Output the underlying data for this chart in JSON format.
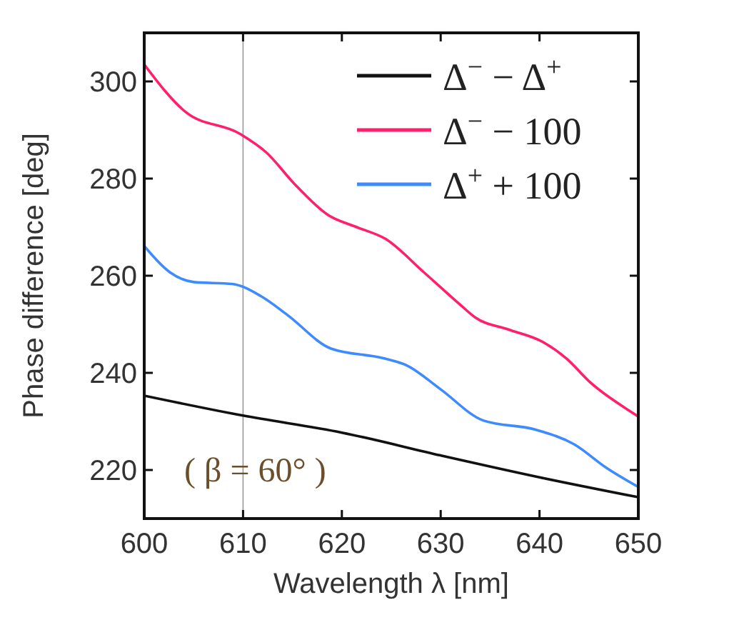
{
  "chart_data": {
    "type": "line",
    "xlabel": "Wavelength λ [nm]",
    "ylabel": "Phase difference [deg]",
    "xlim": [
      600,
      650
    ],
    "ylim": [
      210,
      310
    ],
    "xticks": [
      600,
      610,
      620,
      630,
      640,
      650
    ],
    "yticks": [
      220,
      240,
      260,
      280,
      300
    ],
    "grid": false,
    "legend": "top right",
    "line_style": "solid",
    "marker": "none",
    "series": [
      {
        "name": "Δ$^{−}$ − Δ$^{+}$",
        "color": "#111111",
        "x": [
          600,
          610,
          620,
          630,
          640,
          650
        ],
        "values": [
          235.3,
          231.2,
          227.7,
          223,
          218.5,
          214.4
        ]
      },
      {
        "name": "Δ$^{−}$ − 100",
        "color": "#ff1f6a",
        "x": [
          600,
          604.2,
          609.7,
          612.4,
          615.2,
          618.6,
          621.5,
          624.4,
          628.3,
          632.1,
          633.5,
          636.9,
          640.3,
          642.7,
          645.1,
          649.7,
          650
        ],
        "values": [
          303.5,
          293.7,
          289.2,
          285.3,
          278.9,
          272.5,
          270,
          267.6,
          260.7,
          253.8,
          251.4,
          248.9,
          246.4,
          243,
          238.1,
          231.4,
          231
        ]
      },
      {
        "name": "Δ$^{+}$ + 100",
        "color": "#3d8bff",
        "x": [
          600,
          602.6,
          605,
          608.9,
          611.8,
          614.5,
          618.9,
          624.2,
          626.6,
          630,
          634.3,
          639.6,
          643.5,
          646.8,
          650
        ],
        "values": [
          266.1,
          260.7,
          258.7,
          258.3,
          255.8,
          251.9,
          245,
          243,
          241.5,
          236.6,
          230.2,
          228.3,
          225.3,
          220.4,
          216.5
        ]
      }
    ],
    "ref_lines": [
      {
        "axis": "x",
        "value": 610,
        "color": "#999999"
      }
    ],
    "annotations": [
      "( β = 60° )"
    ]
  }
}
